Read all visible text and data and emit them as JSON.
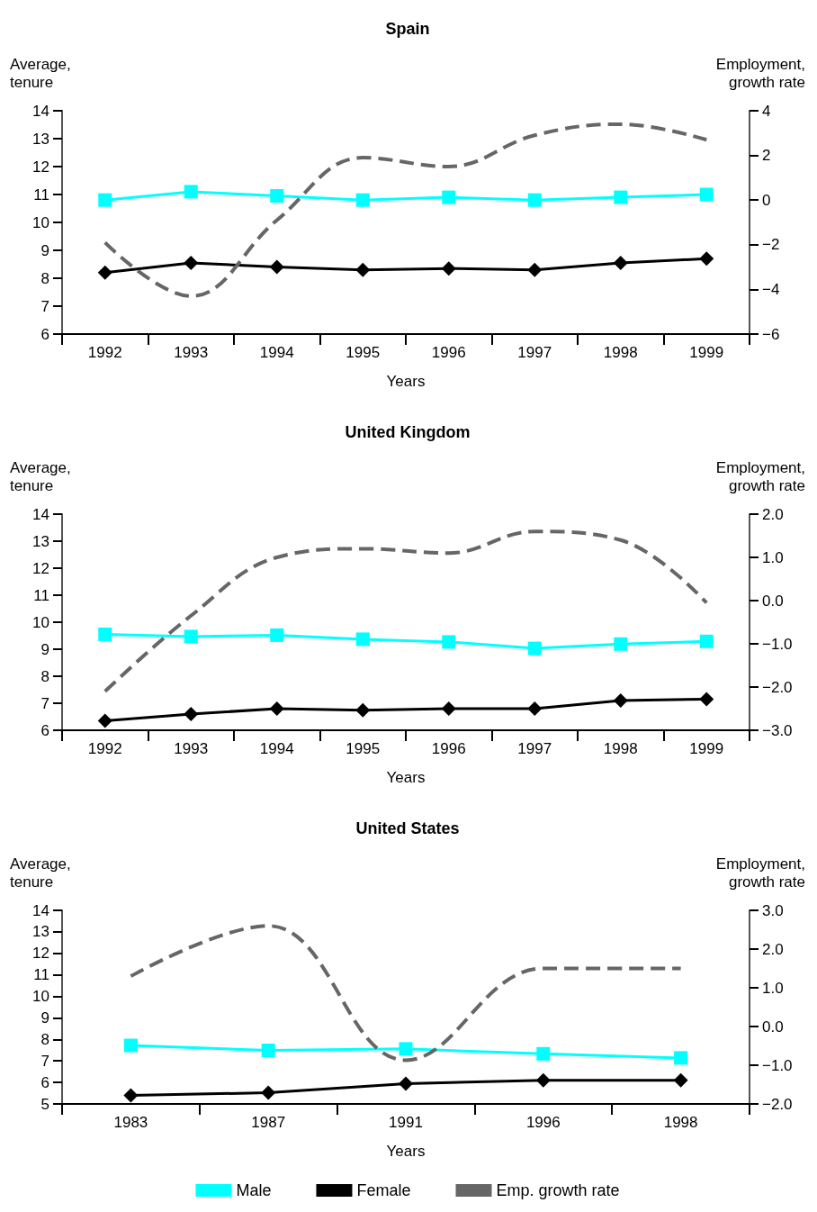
{
  "chart_data": [
    {
      "type": "line",
      "title": "Spain",
      "xlabel": "Years",
      "ylabel": "Average,\ntenure",
      "y2label": "Employment,\ngrowth rate",
      "categories": [
        "1992",
        "1993",
        "1994",
        "1995",
        "1996",
        "1997",
        "1998",
        "1999"
      ],
      "ylim": [
        6,
        14
      ],
      "yticks": [
        6,
        7,
        8,
        9,
        10,
        11,
        12,
        13,
        14
      ],
      "y2lim": [
        -6,
        4
      ],
      "y2ticks": [
        {
          "value": -6,
          "label": "−6"
        },
        {
          "value": -4,
          "label": "−4"
        },
        {
          "value": -2,
          "label": "−2"
        },
        0,
        2,
        4
      ],
      "grid": false,
      "legend": false,
      "series": [
        {
          "color": "#00ffff",
          "marker": "square",
          "line_style": "solid",
          "values": [
            10.8,
            11.1,
            10.95,
            10.8,
            10.9,
            10.8,
            10.9,
            11.0
          ]
        },
        {
          "color": "#000000",
          "marker": "diamond",
          "line_style": "solid",
          "values": [
            8.2,
            8.55,
            8.4,
            8.3,
            8.35,
            8.3,
            8.55,
            8.7
          ]
        },
        {
          "color": "#666666",
          "marker": "none",
          "line_style": "dashed",
          "axis": "y2",
          "values": [
            -1.9,
            -4.3,
            -0.9,
            1.9,
            1.5,
            2.9,
            3.4,
            2.7
          ]
        }
      ]
    },
    {
      "type": "line",
      "title": "United Kingdom",
      "xlabel": "Years",
      "ylabel": "Average,\ntenure",
      "y2label": "Employment,\ngrowth rate",
      "categories": [
        "1992",
        "1993",
        "1994",
        "1995",
        "1996",
        "1997",
        "1998",
        "1999"
      ],
      "ylim": [
        6,
        14
      ],
      "yticks": [
        6,
        7,
        8,
        9,
        10,
        11,
        12,
        13,
        14
      ],
      "y2lim": [
        -3,
        2
      ],
      "y2ticks": [
        {
          "value": -3,
          "label": "−3.0"
        },
        {
          "value": -2,
          "label": "−2.0"
        },
        {
          "value": -1,
          "label": "−1.0"
        },
        {
          "value": 0,
          "label": "0.0"
        },
        {
          "value": 1,
          "label": "1.0"
        },
        {
          "value": 2,
          "label": "2.0"
        }
      ],
      "grid": false,
      "legend": false,
      "series": [
        {
          "color": "#00ffff",
          "marker": "square",
          "line_style": "solid",
          "values": [
            9.55,
            9.47,
            9.52,
            9.37,
            9.27,
            9.03,
            9.19,
            9.29
          ]
        },
        {
          "color": "#000000",
          "marker": "diamond",
          "line_style": "solid",
          "values": [
            6.35,
            6.6,
            6.8,
            6.74,
            6.8,
            6.8,
            7.1,
            7.15
          ]
        },
        {
          "color": "#666666",
          "marker": "none",
          "line_style": "dashed",
          "axis": "y2",
          "values": [
            -2.1,
            -0.35,
            1.0,
            1.2,
            1.1,
            1.6,
            1.4,
            -0.05
          ]
        }
      ]
    },
    {
      "type": "line",
      "title": "United States",
      "xlabel": "Years",
      "ylabel": "Average,\ntenure",
      "y2label": "Employment,\ngrowth rate",
      "categories": [
        "1983",
        "1987",
        "1991",
        "1996",
        "1998"
      ],
      "ylim": [
        5,
        14
      ],
      "yticks": [
        5,
        6,
        7,
        8,
        9,
        10,
        11,
        12,
        13,
        14
      ],
      "y2lim": [
        -2,
        3
      ],
      "y2ticks": [
        {
          "value": -2,
          "label": "−2.0"
        },
        {
          "value": -1,
          "label": "−1.0"
        },
        {
          "value": 0,
          "label": "0.0"
        },
        {
          "value": 1,
          "label": "1.0"
        },
        {
          "value": 2,
          "label": "2.0"
        },
        {
          "value": 3,
          "label": "3.0"
        }
      ],
      "grid": false,
      "legend": "bottom",
      "series": [
        {
          "name": "Male",
          "color": "#00ffff",
          "marker": "square",
          "line_style": "solid",
          "values": [
            7.72,
            7.49,
            7.56,
            7.33,
            7.14
          ]
        },
        {
          "name": "Female",
          "color": "#000000",
          "marker": "diamond",
          "line_style": "solid",
          "values": [
            5.4,
            5.52,
            5.94,
            6.1,
            6.1
          ]
        },
        {
          "name": "Emp. growth rate",
          "color": "#666666",
          "marker": "none",
          "line_style": "dashed",
          "axis": "y2",
          "values": [
            1.3,
            2.6,
            -0.87,
            1.5,
            1.5
          ]
        }
      ]
    }
  ]
}
